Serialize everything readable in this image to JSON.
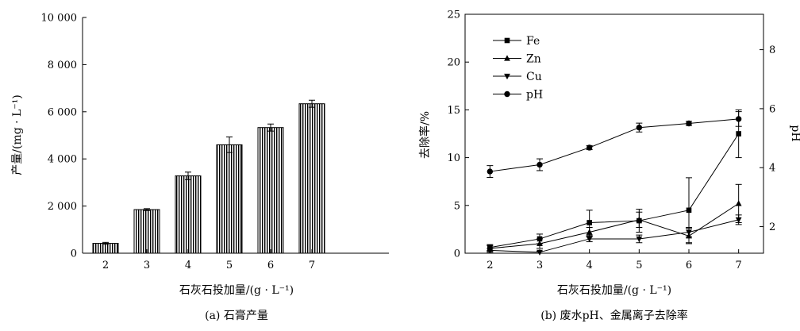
{
  "chart_data": [
    {
      "type": "bar",
      "caption": "(a) 石膏产量",
      "xlabel": "石灰石投加量/(g · L⁻¹)",
      "ylabel": "产量/(mg · L⁻¹)",
      "categories": [
        "2",
        "3",
        "4",
        "5",
        "6",
        "7"
      ],
      "values": [
        420,
        1850,
        3280,
        4600,
        5330,
        6340
      ],
      "errors": [
        40,
        40,
        160,
        330,
        150,
        150
      ],
      "ylim": [
        0,
        10000
      ],
      "yticks": [
        0,
        2000,
        4000,
        6000,
        8000,
        10000
      ],
      "ytick_labels": [
        "0",
        "2 000",
        "4 000",
        "6 000",
        "8 000",
        "10 000"
      ]
    },
    {
      "type": "line",
      "caption": "(b) 废水pH、金属离子去除率",
      "xlabel": "石灰石投加量/(g · L⁻¹)",
      "ylabel_left": "去除率/%",
      "ylabel_right": "pH",
      "x": [
        2,
        3,
        4,
        5,
        6,
        7
      ],
      "xlim": [
        1.5,
        7.5
      ],
      "ylim_left": [
        0,
        25
      ],
      "yticks_left": [
        0,
        5,
        10,
        15,
        20,
        25
      ],
      "ylim_right": [
        1.1,
        9.2
      ],
      "yticks_right": [
        2,
        4,
        6,
        8
      ],
      "series": [
        {
          "name": "Fe",
          "marker": "square",
          "axis": "left",
          "values": [
            0.6,
            1.5,
            3.2,
            3.4,
            4.5,
            12.5
          ],
          "errors": [
            0.3,
            0.5,
            1.3,
            1.2,
            3.4,
            2.5
          ]
        },
        {
          "name": "Zn",
          "marker": "triangle-up",
          "axis": "left",
          "values": [
            0.5,
            1.0,
            2.2,
            3.5,
            1.8,
            5.2
          ],
          "errors": [
            0.3,
            0.5,
            0.5,
            0.8,
            0.8,
            2.0
          ]
        },
        {
          "name": "Cu",
          "marker": "triangle-down",
          "axis": "left",
          "values": [
            0.3,
            0.1,
            1.5,
            1.5,
            2.2,
            3.5
          ],
          "errors": [
            0.2,
            0.1,
            0.3,
            0.4,
            0.5,
            0.5
          ]
        },
        {
          "name": "pH",
          "marker": "circle",
          "axis": "right",
          "values": [
            3.87,
            4.1,
            4.68,
            5.36,
            5.5,
            5.65
          ],
          "errors": [
            0.2,
            0.2,
            0.07,
            0.15,
            0.07,
            0.25
          ]
        }
      ]
    }
  ]
}
